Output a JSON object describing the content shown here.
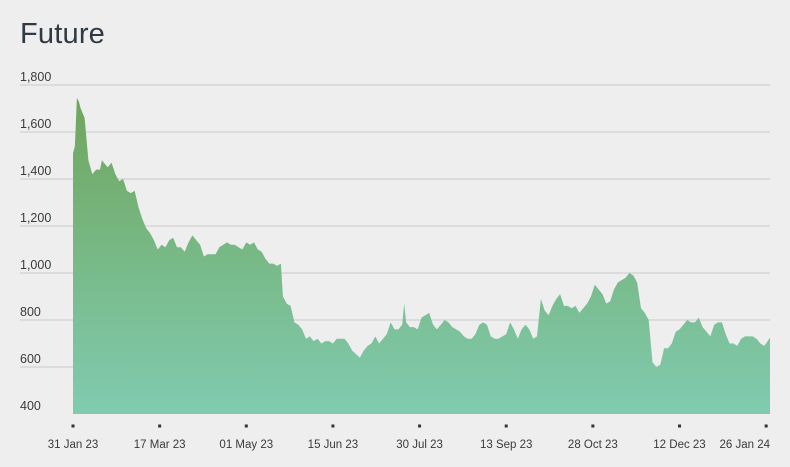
{
  "chart_data": {
    "type": "area",
    "title": "Future",
    "xlabel": "",
    "ylabel": "",
    "ylim": [
      400,
      1800
    ],
    "grid": true,
    "y_ticks": [
      400,
      600,
      800,
      1000,
      1200,
      1400,
      1600,
      1800
    ],
    "y_tick_labels": [
      "400",
      "600",
      "800",
      "1,000",
      "1,200",
      "1,400",
      "1,600",
      "1,800"
    ],
    "x_ticks": [
      "2023-01-31",
      "2023-03-17",
      "2023-05-01",
      "2023-06-15",
      "2023-07-30",
      "2023-09-13",
      "2023-10-28",
      "2023-12-12",
      "2024-01-26"
    ],
    "x_tick_labels": [
      "31 Jan 23",
      "17 Mar 23",
      "01 May 23",
      "15 Jun 23",
      "30 Jul 23",
      "13 Sep 23",
      "28 Oct 23",
      "12 Dec 23",
      "26 Jan 24"
    ],
    "x_range": [
      "2023-01-31",
      "2024-01-28"
    ],
    "colors": {
      "area_top": "#6fa65c",
      "area_bottom": "#80cbb0",
      "background": "#eeeeee",
      "grid": "#c9c9c9"
    },
    "series": [
      {
        "points": [
          [
            "2023-01-31",
            1510
          ],
          [
            "2023-02-01",
            1540
          ],
          [
            "2023-02-02",
            1745
          ],
          [
            "2023-02-03",
            1730
          ],
          [
            "2023-02-04",
            1700
          ],
          [
            "2023-02-06",
            1660
          ],
          [
            "2023-02-08",
            1480
          ],
          [
            "2023-02-10",
            1420
          ],
          [
            "2023-02-12",
            1440
          ],
          [
            "2023-02-14",
            1440
          ],
          [
            "2023-02-15",
            1480
          ],
          [
            "2023-02-16",
            1470
          ],
          [
            "2023-02-18",
            1450
          ],
          [
            "2023-02-20",
            1470
          ],
          [
            "2023-02-22",
            1420
          ],
          [
            "2023-02-24",
            1390
          ],
          [
            "2023-02-26",
            1400
          ],
          [
            "2023-02-28",
            1350
          ],
          [
            "2023-03-02",
            1340
          ],
          [
            "2023-03-04",
            1350
          ],
          [
            "2023-03-06",
            1280
          ],
          [
            "2023-03-08",
            1230
          ],
          [
            "2023-03-10",
            1190
          ],
          [
            "2023-03-12",
            1170
          ],
          [
            "2023-03-14",
            1140
          ],
          [
            "2023-03-16",
            1100
          ],
          [
            "2023-03-18",
            1120
          ],
          [
            "2023-03-20",
            1110
          ],
          [
            "2023-03-22",
            1140
          ],
          [
            "2023-03-24",
            1150
          ],
          [
            "2023-03-26",
            1110
          ],
          [
            "2023-03-28",
            1110
          ],
          [
            "2023-03-30",
            1090
          ],
          [
            "2023-04-01",
            1130
          ],
          [
            "2023-04-03",
            1160
          ],
          [
            "2023-04-05",
            1140
          ],
          [
            "2023-04-07",
            1120
          ],
          [
            "2023-04-09",
            1070
          ],
          [
            "2023-04-11",
            1080
          ],
          [
            "2023-04-13",
            1080
          ],
          [
            "2023-04-15",
            1080
          ],
          [
            "2023-04-17",
            1110
          ],
          [
            "2023-04-19",
            1120
          ],
          [
            "2023-04-21",
            1130
          ],
          [
            "2023-04-23",
            1120
          ],
          [
            "2023-04-25",
            1120
          ],
          [
            "2023-04-27",
            1110
          ],
          [
            "2023-04-29",
            1100
          ],
          [
            "2023-05-01",
            1130
          ],
          [
            "2023-05-03",
            1120
          ],
          [
            "2023-05-05",
            1130
          ],
          [
            "2023-05-07",
            1100
          ],
          [
            "2023-05-09",
            1090
          ],
          [
            "2023-05-11",
            1060
          ],
          [
            "2023-05-13",
            1040
          ],
          [
            "2023-05-15",
            1040
          ],
          [
            "2023-05-17",
            1030
          ],
          [
            "2023-05-19",
            1040
          ],
          [
            "2023-05-20",
            900
          ],
          [
            "2023-05-22",
            870
          ],
          [
            "2023-05-24",
            860
          ],
          [
            "2023-05-26",
            790
          ],
          [
            "2023-05-28",
            780
          ],
          [
            "2023-05-30",
            760
          ],
          [
            "2023-06-01",
            720
          ],
          [
            "2023-06-03",
            730
          ],
          [
            "2023-06-05",
            710
          ],
          [
            "2023-06-07",
            720
          ],
          [
            "2023-06-09",
            700
          ],
          [
            "2023-06-11",
            710
          ],
          [
            "2023-06-13",
            710
          ],
          [
            "2023-06-15",
            700
          ],
          [
            "2023-06-17",
            720
          ],
          [
            "2023-06-19",
            720
          ],
          [
            "2023-06-21",
            720
          ],
          [
            "2023-06-23",
            700
          ],
          [
            "2023-06-25",
            670
          ],
          [
            "2023-06-27",
            655
          ],
          [
            "2023-06-29",
            640
          ],
          [
            "2023-07-01",
            670
          ],
          [
            "2023-07-03",
            690
          ],
          [
            "2023-07-05",
            700
          ],
          [
            "2023-07-07",
            730
          ],
          [
            "2023-07-09",
            700
          ],
          [
            "2023-07-11",
            720
          ],
          [
            "2023-07-13",
            740
          ],
          [
            "2023-07-15",
            790
          ],
          [
            "2023-07-17",
            760
          ],
          [
            "2023-07-19",
            760
          ],
          [
            "2023-07-21",
            780
          ],
          [
            "2023-07-22",
            870
          ],
          [
            "2023-07-23",
            790
          ],
          [
            "2023-07-25",
            770
          ],
          [
            "2023-07-27",
            770
          ],
          [
            "2023-07-29",
            760
          ],
          [
            "2023-07-31",
            810
          ],
          [
            "2023-08-02",
            820
          ],
          [
            "2023-08-04",
            830
          ],
          [
            "2023-08-06",
            780
          ],
          [
            "2023-08-08",
            760
          ],
          [
            "2023-08-10",
            780
          ],
          [
            "2023-08-12",
            800
          ],
          [
            "2023-08-14",
            790
          ],
          [
            "2023-08-16",
            770
          ],
          [
            "2023-08-18",
            760
          ],
          [
            "2023-08-20",
            750
          ],
          [
            "2023-08-22",
            730
          ],
          [
            "2023-08-24",
            720
          ],
          [
            "2023-08-26",
            720
          ],
          [
            "2023-08-28",
            740
          ],
          [
            "2023-08-30",
            780
          ],
          [
            "2023-09-01",
            790
          ],
          [
            "2023-09-03",
            780
          ],
          [
            "2023-09-05",
            730
          ],
          [
            "2023-09-07",
            720
          ],
          [
            "2023-09-09",
            720
          ],
          [
            "2023-09-11",
            730
          ],
          [
            "2023-09-13",
            740
          ],
          [
            "2023-09-15",
            790
          ],
          [
            "2023-09-17",
            760
          ],
          [
            "2023-09-19",
            720
          ],
          [
            "2023-09-21",
            760
          ],
          [
            "2023-09-23",
            780
          ],
          [
            "2023-09-25",
            760
          ],
          [
            "2023-09-27",
            720
          ],
          [
            "2023-09-29",
            730
          ],
          [
            "2023-10-01",
            890
          ],
          [
            "2023-10-03",
            840
          ],
          [
            "2023-10-05",
            820
          ],
          [
            "2023-10-07",
            860
          ],
          [
            "2023-10-09",
            890
          ],
          [
            "2023-10-11",
            910
          ],
          [
            "2023-10-13",
            860
          ],
          [
            "2023-10-15",
            860
          ],
          [
            "2023-10-17",
            850
          ],
          [
            "2023-10-19",
            860
          ],
          [
            "2023-10-21",
            830
          ],
          [
            "2023-10-23",
            850
          ],
          [
            "2023-10-25",
            870
          ],
          [
            "2023-10-27",
            900
          ],
          [
            "2023-10-29",
            950
          ],
          [
            "2023-10-31",
            930
          ],
          [
            "2023-11-02",
            910
          ],
          [
            "2023-11-04",
            870
          ],
          [
            "2023-11-06",
            880
          ],
          [
            "2023-11-08",
            930
          ],
          [
            "2023-11-10",
            960
          ],
          [
            "2023-11-12",
            970
          ],
          [
            "2023-11-14",
            980
          ],
          [
            "2023-11-16",
            1000
          ],
          [
            "2023-11-18",
            990
          ],
          [
            "2023-11-20",
            960
          ],
          [
            "2023-11-22",
            850
          ],
          [
            "2023-11-24",
            830
          ],
          [
            "2023-11-26",
            800
          ],
          [
            "2023-11-28",
            620
          ],
          [
            "2023-11-30",
            600
          ],
          [
            "2023-12-02",
            610
          ],
          [
            "2023-12-04",
            680
          ],
          [
            "2023-12-06",
            680
          ],
          [
            "2023-12-08",
            700
          ],
          [
            "2023-12-10",
            750
          ],
          [
            "2023-12-12",
            760
          ],
          [
            "2023-12-14",
            780
          ],
          [
            "2023-12-16",
            800
          ],
          [
            "2023-12-18",
            790
          ],
          [
            "2023-12-20",
            790
          ],
          [
            "2023-12-22",
            810
          ],
          [
            "2023-12-24",
            770
          ],
          [
            "2023-12-26",
            750
          ],
          [
            "2023-12-28",
            730
          ],
          [
            "2023-12-30",
            780
          ],
          [
            "2024-01-01",
            790
          ],
          [
            "2024-01-03",
            790
          ],
          [
            "2024-01-05",
            740
          ],
          [
            "2024-01-07",
            700
          ],
          [
            "2024-01-09",
            700
          ],
          [
            "2024-01-11",
            690
          ],
          [
            "2024-01-13",
            720
          ],
          [
            "2024-01-15",
            730
          ],
          [
            "2024-01-17",
            730
          ],
          [
            "2024-01-19",
            730
          ],
          [
            "2024-01-21",
            720
          ],
          [
            "2024-01-23",
            700
          ],
          [
            "2024-01-25",
            690
          ],
          [
            "2024-01-26",
            700
          ],
          [
            "2024-01-28",
            725
          ]
        ]
      }
    ]
  }
}
